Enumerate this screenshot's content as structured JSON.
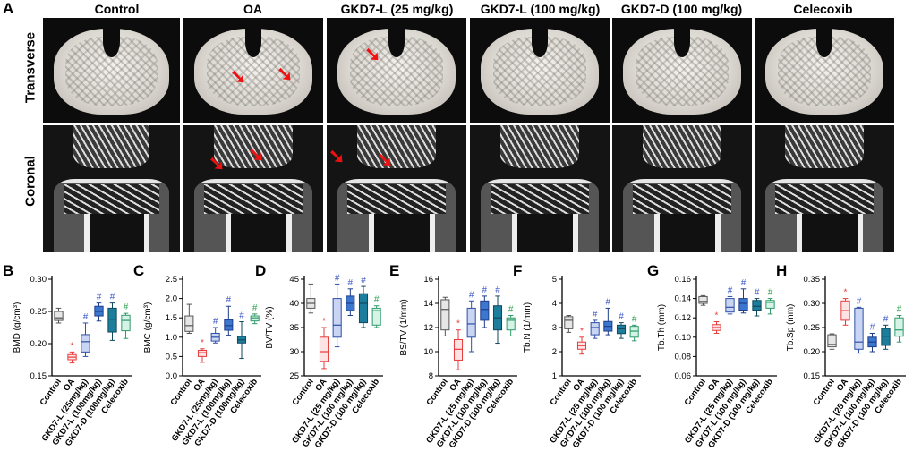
{
  "panel_letters": {
    "A": "A",
    "B": "B",
    "C": "C",
    "D": "D",
    "E": "E",
    "F": "F",
    "G": "G",
    "H": "H"
  },
  "column_titles": [
    "Control",
    "OA",
    "GKD7-L (25 mg/kg)",
    "GKD7-L (100 mg/kg)",
    "GKD7-D (100 mg/kg)",
    "Celecoxib"
  ],
  "row_labels": {
    "transverse": "Transverse",
    "coronal": "Coronal"
  },
  "colors": {
    "control": "#808080",
    "oa": "#e83b3b",
    "l25": "#2f4fa8",
    "l100": "#2f6fc0",
    "d100": "#1a7a9c",
    "cele": "#2f9a6a",
    "sig": "#3a56c7",
    "star": "#e83b3b",
    "celesig": "#2fa04f"
  },
  "chart_data": [
    {
      "type": "box",
      "panel": "B",
      "ylabel": "BMD (g/cm³)",
      "ylim": [
        0.15,
        0.3
      ],
      "yticks": [
        "0.15",
        "0.20",
        "0.25",
        "0.30"
      ],
      "categories": [
        "Control",
        "OA",
        "GKD7-L (25mg/kg)",
        "GKD7-L (100mg/kg)",
        "GKD7-D (100mg/kg)",
        "Celecoxib"
      ],
      "boxes": [
        {
          "min": 0.232,
          "q1": 0.236,
          "med": 0.24,
          "q3": 0.25,
          "max": 0.255
        },
        {
          "min": 0.17,
          "q1": 0.175,
          "med": 0.179,
          "q3": 0.183,
          "max": 0.187
        },
        {
          "min": 0.18,
          "q1": 0.187,
          "med": 0.203,
          "q3": 0.214,
          "max": 0.232
        },
        {
          "min": 0.235,
          "q1": 0.243,
          "med": 0.25,
          "q3": 0.258,
          "max": 0.263
        },
        {
          "min": 0.205,
          "q1": 0.218,
          "med": 0.238,
          "q3": 0.255,
          "max": 0.263
        },
        {
          "min": 0.208,
          "q1": 0.22,
          "med": 0.236,
          "q3": 0.244,
          "max": 0.247
        }
      ],
      "marks": [
        "",
        "*",
        "#",
        "#",
        "#",
        "#"
      ]
    },
    {
      "type": "box",
      "panel": "C",
      "ylabel": "BMC (g/cm³)",
      "ylim": [
        0.0,
        2.5
      ],
      "yticks": [
        "0.0",
        "0.5",
        "1.0",
        "1.5",
        "2.0",
        "2.5"
      ],
      "categories": [
        "Control",
        "OA",
        "GKD7-L (25mg/kg)",
        "GKD7-L (100mg/kg)",
        "GKD7-D (100mg/kg)",
        "Celecoxib"
      ],
      "boxes": [
        {
          "min": 1.1,
          "q1": 1.15,
          "med": 1.3,
          "q3": 1.55,
          "max": 1.85
        },
        {
          "min": 0.35,
          "q1": 0.5,
          "med": 0.6,
          "q3": 0.66,
          "max": 0.7
        },
        {
          "min": 0.85,
          "q1": 0.9,
          "med": 1.0,
          "q3": 1.1,
          "max": 1.25
        },
        {
          "min": 1.05,
          "q1": 1.18,
          "med": 1.3,
          "q3": 1.45,
          "max": 1.8
        },
        {
          "min": 0.45,
          "q1": 0.85,
          "med": 0.93,
          "q3": 1.02,
          "max": 1.4
        },
        {
          "min": 1.35,
          "q1": 1.42,
          "med": 1.5,
          "q3": 1.55,
          "max": 1.6
        }
      ],
      "marks": [
        "",
        "*",
        "#",
        "#",
        "#",
        "#"
      ]
    },
    {
      "type": "box",
      "panel": "D",
      "ylabel": "BV/TV (%)",
      "ylim": [
        25,
        45
      ],
      "yticks": [
        "25",
        "30",
        "35",
        "40",
        "45"
      ],
      "categories": [
        "Control",
        "OA",
        "GKD7-L (25 mg/kg)",
        "GKD7-L (100 mg/kg)",
        "GKD7-D (100 mg/kg)",
        "Celecoxib"
      ],
      "boxes": [
        {
          "min": 38.0,
          "q1": 39.0,
          "med": 40.0,
          "q3": 41.0,
          "max": 44.0
        },
        {
          "min": 26.5,
          "q1": 28.0,
          "med": 30.0,
          "q3": 33.0,
          "max": 35.0
        },
        {
          "min": 31.0,
          "q1": 33.0,
          "med": 35.5,
          "q3": 41.0,
          "max": 44.0
        },
        {
          "min": 37.5,
          "q1": 38.5,
          "med": 40.0,
          "q3": 41.5,
          "max": 43.0
        },
        {
          "min": 35.0,
          "q1": 36.0,
          "med": 40.0,
          "q3": 42.0,
          "max": 43.5
        },
        {
          "min": 35.0,
          "q1": 35.5,
          "med": 38.5,
          "q3": 39.0,
          "max": 39.5
        }
      ],
      "marks": [
        "",
        "*",
        "#",
        "#",
        "#",
        "#"
      ]
    },
    {
      "type": "box",
      "panel": "E",
      "ylabel": "BS/TV (1/mm)",
      "ylim": [
        8,
        16
      ],
      "yticks": [
        "8",
        "10",
        "12",
        "14",
        "16"
      ],
      "categories": [
        "Control",
        "OA",
        "GKD7-L (25 mg/kg)",
        "GKD7-L (100 mg/kg)",
        "GKD7-D (100 mg/kg)",
        "Celecoxib"
      ],
      "boxes": [
        {
          "min": 11.3,
          "q1": 11.8,
          "med": 13.5,
          "q3": 14.3,
          "max": 14.5
        },
        {
          "min": 8.5,
          "q1": 9.3,
          "med": 10.2,
          "q3": 11.0,
          "max": 11.8
        },
        {
          "min": 10.0,
          "q1": 11.2,
          "med": 12.3,
          "q3": 13.6,
          "max": 14.2
        },
        {
          "min": 12.0,
          "q1": 12.6,
          "med": 13.5,
          "q3": 14.2,
          "max": 14.6
        },
        {
          "min": 10.7,
          "q1": 11.8,
          "med": 12.8,
          "q3": 13.8,
          "max": 14.6
        },
        {
          "min": 11.3,
          "q1": 11.8,
          "med": 12.6,
          "q3": 12.8,
          "max": 13.0
        }
      ],
      "marks": [
        "",
        "*",
        "#",
        "#",
        "#",
        "#"
      ]
    },
    {
      "type": "box",
      "panel": "F",
      "ylabel": "Tb.N (1/mm)",
      "ylim": [
        1,
        5
      ],
      "yticks": [
        "1",
        "2",
        "3",
        "4",
        "5"
      ],
      "categories": [
        "Control",
        "OA",
        "GKD7-L (25 mg/kg)",
        "GKD7-L (100 mg/kg)",
        "GKD7-D (100 mg/kg)",
        "Celecoxib"
      ],
      "boxes": [
        {
          "min": 2.8,
          "q1": 2.95,
          "med": 3.3,
          "q3": 3.45,
          "max": 3.5
        },
        {
          "min": 1.9,
          "q1": 2.1,
          "med": 2.25,
          "q3": 2.4,
          "max": 2.6
        },
        {
          "min": 2.55,
          "q1": 2.7,
          "med": 3.0,
          "q3": 3.2,
          "max": 3.3
        },
        {
          "min": 2.7,
          "q1": 2.85,
          "med": 3.05,
          "q3": 3.25,
          "max": 3.8
        },
        {
          "min": 2.55,
          "q1": 2.75,
          "med": 2.95,
          "q3": 3.1,
          "max": 3.2
        },
        {
          "min": 2.45,
          "q1": 2.6,
          "med": 2.85,
          "q3": 3.05,
          "max": 3.1
        }
      ],
      "marks": [
        "",
        "*",
        "#",
        "#",
        "#",
        "#"
      ]
    },
    {
      "type": "box",
      "panel": "G",
      "ylabel": "Tb.Th (mm)",
      "ylim": [
        0.06,
        0.16
      ],
      "yticks": [
        "0.06",
        "0.08",
        "0.10",
        "0.12",
        "0.14",
        "0.16"
      ],
      "categories": [
        "Control",
        "OA",
        "GKD7-L (25 mg/kg)",
        "GKD7-L (100 mg/kg)",
        "GKD7-D (100 mg/kg)",
        "Celecoxib"
      ],
      "boxes": [
        {
          "min": 0.133,
          "q1": 0.135,
          "med": 0.137,
          "q3": 0.142,
          "max": 0.143
        },
        {
          "min": 0.104,
          "q1": 0.107,
          "med": 0.11,
          "q3": 0.113,
          "max": 0.116
        },
        {
          "min": 0.124,
          "q1": 0.126,
          "med": 0.131,
          "q3": 0.14,
          "max": 0.142
        },
        {
          "min": 0.125,
          "q1": 0.128,
          "med": 0.135,
          "q3": 0.14,
          "max": 0.15
        },
        {
          "min": 0.122,
          "q1": 0.128,
          "med": 0.132,
          "q3": 0.138,
          "max": 0.14
        },
        {
          "min": 0.124,
          "q1": 0.13,
          "med": 0.136,
          "q3": 0.138,
          "max": 0.14
        }
      ],
      "marks": [
        "",
        "*",
        "#",
        "#",
        "#",
        "#"
      ]
    },
    {
      "type": "box",
      "panel": "H",
      "ylabel": "Tb.Sp (mm)",
      "ylim": [
        0.15,
        0.35
      ],
      "yticks": [
        "0.15",
        "0.20",
        "0.25",
        "0.30",
        "0.35"
      ],
      "categories": [
        "Control",
        "OA",
        "GKD7-L (25 mg/kg)",
        "GKD7-L (100 mg/kg)",
        "GKD7-D (100 mg/kg)",
        "Celecoxib"
      ],
      "boxes": [
        {
          "min": 0.205,
          "q1": 0.21,
          "med": 0.215,
          "q3": 0.235,
          "max": 0.237
        },
        {
          "min": 0.255,
          "q1": 0.265,
          "med": 0.285,
          "q3": 0.305,
          "max": 0.31
        },
        {
          "min": 0.197,
          "q1": 0.205,
          "med": 0.22,
          "q3": 0.29,
          "max": 0.292
        },
        {
          "min": 0.2,
          "q1": 0.21,
          "med": 0.22,
          "q3": 0.23,
          "max": 0.238
        },
        {
          "min": 0.205,
          "q1": 0.213,
          "med": 0.232,
          "q3": 0.248,
          "max": 0.255
        },
        {
          "min": 0.22,
          "q1": 0.232,
          "med": 0.245,
          "q3": 0.27,
          "max": 0.275
        }
      ],
      "marks": [
        "",
        "*",
        "#",
        "#",
        "#",
        "#"
      ]
    }
  ]
}
